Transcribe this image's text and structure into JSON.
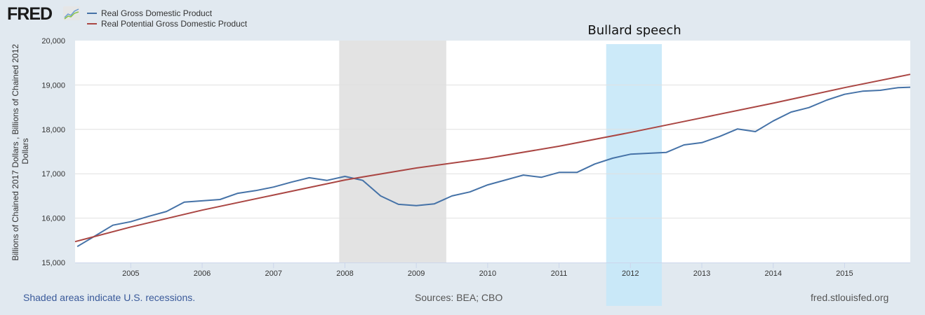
{
  "header": {
    "logo_text": "FRED",
    "logo_icon": "line-chart-icon"
  },
  "footer": {
    "recession_note": "Shaded areas indicate U.S. recessions.",
    "sources": "Sources: BEA; CBO",
    "site": "fred.stlouisfed.org"
  },
  "colors": {
    "background": "#e1e9f0",
    "plot_bg": "#ffffff",
    "gdp": "#4572a7",
    "potential": "#aa4643",
    "recession": "#e3e3e3",
    "highlight": "#c6e8f8"
  },
  "chart_data": {
    "type": "line",
    "title": "",
    "xlabel": "",
    "ylabel": "Billions of Chained 2017 Dollars , Billions of Chained 2012 Dollars",
    "ylim": [
      15000,
      20000
    ],
    "xlim": [
      2004.22,
      2015.92
    ],
    "yticks": [
      15000,
      16000,
      17000,
      18000,
      19000,
      20000
    ],
    "ytick_labels": [
      "15,000",
      "16,000",
      "17,000",
      "18,000",
      "19,000",
      "20,000"
    ],
    "xticks": [
      2005,
      2006,
      2007,
      2008,
      2009,
      2010,
      2011,
      2012,
      2013,
      2014,
      2015
    ],
    "xtick_labels": [
      "2005",
      "2006",
      "2007",
      "2008",
      "2009",
      "2010",
      "2011",
      "2012",
      "2013",
      "2014",
      "2015"
    ],
    "grid": true,
    "legend_position": "top-left",
    "series": [
      {
        "name": "Real Gross Domestic Product",
        "color": "#4572a7",
        "x": [
          2004.25,
          2004.5,
          2004.75,
          2005.0,
          2005.25,
          2005.5,
          2005.75,
          2006.0,
          2006.25,
          2006.5,
          2006.75,
          2007.0,
          2007.25,
          2007.5,
          2007.75,
          2008.0,
          2008.25,
          2008.5,
          2008.75,
          2009.0,
          2009.25,
          2009.5,
          2009.75,
          2010.0,
          2010.25,
          2010.5,
          2010.75,
          2011.0,
          2011.25,
          2011.5,
          2011.75,
          2012.0,
          2012.25,
          2012.5,
          2012.75,
          2013.0,
          2013.25,
          2013.5,
          2013.75,
          2014.0,
          2014.25,
          2014.5,
          2014.75,
          2015.0,
          2015.25,
          2015.5,
          2015.75,
          2015.92
        ],
        "values": [
          15360,
          15600,
          15840,
          15920,
          16040,
          16150,
          16360,
          16390,
          16420,
          16560,
          16620,
          16700,
          16810,
          16910,
          16850,
          16940,
          16850,
          16500,
          16310,
          16280,
          16320,
          16500,
          16590,
          16750,
          16860,
          16970,
          16920,
          17030,
          17030,
          17220,
          17350,
          17440,
          17460,
          17480,
          17650,
          17700,
          17840,
          18010,
          17950,
          18190,
          18390,
          18490,
          18660,
          18790,
          18860,
          18880,
          18940,
          18950
        ]
      },
      {
        "name": "Real Potential Gross Domestic Product",
        "color": "#aa4643",
        "x": [
          2004.22,
          2005.0,
          2006.0,
          2007.0,
          2008.0,
          2009.0,
          2010.0,
          2011.0,
          2012.0,
          2013.0,
          2014.0,
          2015.0,
          2015.92
        ],
        "values": [
          15470,
          15800,
          16180,
          16520,
          16860,
          17130,
          17350,
          17620,
          17930,
          18260,
          18590,
          18940,
          19240
        ]
      }
    ],
    "shaded_regions": [
      {
        "label": "recession",
        "start": 2007.92,
        "end": 2009.42,
        "color": "#e3e3e3"
      },
      {
        "label": "Bullard speech",
        "start": 2011.66,
        "end": 2012.44,
        "color": "#c6e8f8"
      }
    ],
    "annotations": [
      {
        "text": "Bullard speech",
        "x": 2012.02
      }
    ]
  }
}
